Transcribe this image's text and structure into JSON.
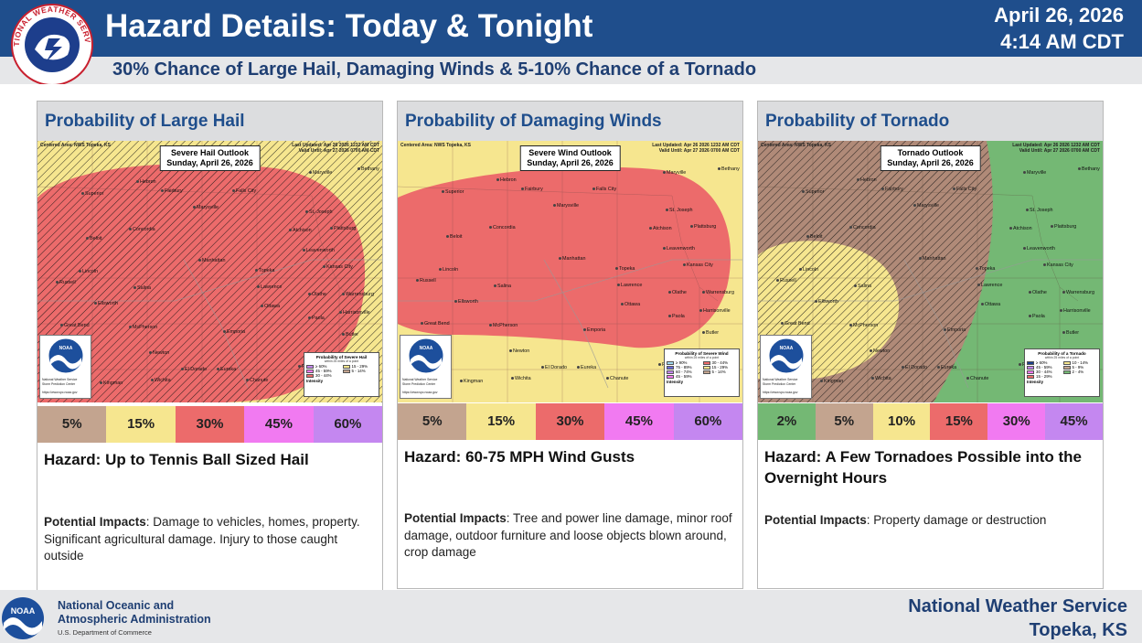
{
  "header": {
    "title": "Hazard Details: Today & Tonight",
    "date": "April 26, 2026",
    "time": "4:14 AM CDT",
    "subtitle": "30% Chance of Large Hail, Damaging Winds & 5-10% Chance of a Tornado",
    "logo_text": "NATIONAL WEATHER SERVICE"
  },
  "colors": {
    "brand_blue": "#1f4e8c",
    "header_gray": "#dcdddf",
    "p2": "#74b874",
    "p5": "#c3a48f",
    "p10": "#f6e68f",
    "p15": "#f6e68f",
    "p30": "#ec6b6b",
    "p45": "#f17af1",
    "p60": "#c487f0"
  },
  "map_common": {
    "centered": "Centered Area: NWS Topeka, KS",
    "updated": "Last Updated: Apr 26 2026 1232 AM CDT",
    "valid": "Valid Until: Apr 27 2026 0700 AM CDT",
    "noaa_label": "NOAA",
    "nws_credit": "National Weather Service",
    "spc_credit": "Storm Prediction Center",
    "website": "https://www.spc.noaa.gov",
    "legend_subtitle": "within 25 miles of a point",
    "intensity": "Intensity",
    "cities": [
      "Maryville",
      "Bethany",
      "Hebron",
      "Fairbury",
      "Falls City",
      "Superior",
      "Marysville",
      "St. Joseph",
      "Concordia",
      "Atchison",
      "Plattsburg",
      "Beloit",
      "Leavenworth",
      "Manhattan",
      "Kansas City",
      "Lincoln",
      "Topeka",
      "Russell",
      "Salina",
      "Lawrence",
      "Olathe",
      "Warrensburg",
      "Ellsworth",
      "Ottawa",
      "Harrisonville",
      "Paola",
      "Great Bend",
      "McPherson",
      "Emporia",
      "Butler",
      "Newton",
      "El Dorado",
      "Eureka",
      "Kingman",
      "Wichita",
      "Chanute",
      "Fe"
    ]
  },
  "panels": [
    {
      "heading": "Probability of Large Hail",
      "outlook_title": "Severe Hail Outlook",
      "outlook_date": "Sunday, April 26, 2026",
      "legend_title": "Probability of Severe Hail",
      "legend_items": [
        {
          "label": "≥ 60%",
          "color": "#c487f0"
        },
        {
          "label": "15 - 29%",
          "color": "#f6e68f"
        },
        {
          "label": "45 - 59%",
          "color": "#f17af1"
        },
        {
          "label": "5 - 14%",
          "color": "#c3a48f"
        },
        {
          "label": "30 - 44%",
          "color": "#ec6b6b"
        }
      ],
      "probs": [
        {
          "label": "5%",
          "color": "#c3a48f"
        },
        {
          "label": "15%",
          "color": "#f6e68f"
        },
        {
          "label": "30%",
          "color": "#ec6b6b"
        },
        {
          "label": "45%",
          "color": "#f17af1"
        },
        {
          "label": "60%",
          "color": "#c487f0"
        }
      ],
      "hazard": "Hazard: Up to Tennis Ball Sized Hail",
      "impacts_label": "Potential Impacts",
      "impacts": ": Damage to vehicles, homes, property. Significant agricultural damage. Injury to those caught outside"
    },
    {
      "heading": "Probability of Damaging Winds",
      "outlook_title": "Severe Wind Outlook",
      "outlook_date": "Sunday, April 26, 2026",
      "legend_title": "Probability of Severe Wind",
      "legend_items": [
        {
          "label": "≥ 90%",
          "color": "#9fd8f0"
        },
        {
          "label": "30 - 44%",
          "color": "#ec6b6b"
        },
        {
          "label": "75 - 89%",
          "color": "#6a6ad8"
        },
        {
          "label": "15 - 29%",
          "color": "#f6e68f"
        },
        {
          "label": "60 - 74%",
          "color": "#c487f0"
        },
        {
          "label": "5 - 14%",
          "color": "#c3a48f"
        },
        {
          "label": "45 - 59%",
          "color": "#f17af1"
        }
      ],
      "probs": [
        {
          "label": "5%",
          "color": "#c3a48f"
        },
        {
          "label": "15%",
          "color": "#f6e68f"
        },
        {
          "label": "30%",
          "color": "#ec6b6b"
        },
        {
          "label": "45%",
          "color": "#f17af1"
        },
        {
          "label": "60%",
          "color": "#c487f0"
        }
      ],
      "hazard": "Hazard: 60-75 MPH Wind Gusts",
      "impacts_label": "Potential Impacts",
      "impacts": ": Tree and power line damage, minor roof damage, outdoor furniture and loose objects blown around, crop damage"
    },
    {
      "heading": "Probability of Tornado",
      "outlook_title": "Tornado Outlook",
      "outlook_date": "Sunday, April 26, 2026",
      "legend_title": "Probability of a Tornado",
      "legend_items": [
        {
          "label": "≥ 60%",
          "color": "#1a3f8f"
        },
        {
          "label": "10 - 14%",
          "color": "#f6e68f"
        },
        {
          "label": "45 - 59%",
          "color": "#c487f0"
        },
        {
          "label": "5 - 9%",
          "color": "#c3a48f"
        },
        {
          "label": "30 - 44%",
          "color": "#f17af1"
        },
        {
          "label": "2 - 4%",
          "color": "#74b874"
        },
        {
          "label": "15 - 29%",
          "color": "#ec6b6b"
        }
      ],
      "probs": [
        {
          "label": "2%",
          "color": "#74b874"
        },
        {
          "label": "5%",
          "color": "#c3a48f"
        },
        {
          "label": "10%",
          "color": "#f6e68f"
        },
        {
          "label": "15%",
          "color": "#ec6b6b"
        },
        {
          "label": "30%",
          "color": "#f17af1"
        },
        {
          "label": "45%",
          "color": "#c487f0"
        }
      ],
      "hazard": "Hazard: A Few Tornadoes Possible into the Overnight Hours",
      "impacts_label": "Potential Impacts",
      "impacts": ":  Property damage or destruction"
    }
  ],
  "footer": {
    "noaa_logo_text": "NOAA",
    "noaa_line1": "National Oceanic and",
    "noaa_line2": "Atmospheric Administration",
    "dept": "U.S. Department of Commerce",
    "nws_line1": "National Weather Service",
    "nws_line2": "Topeka, KS"
  }
}
